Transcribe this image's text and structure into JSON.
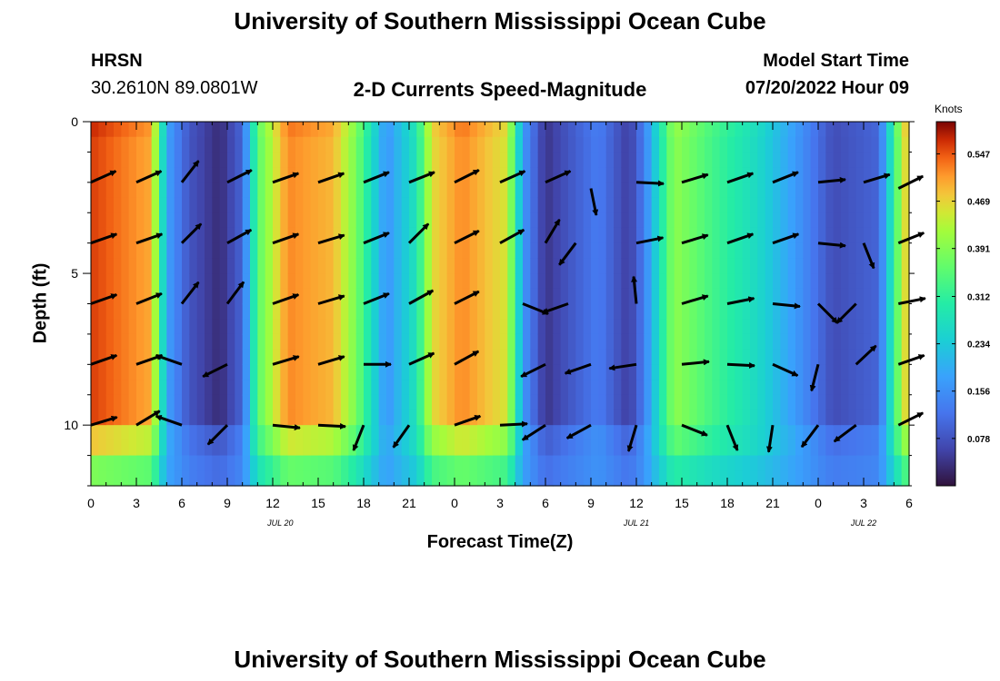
{
  "page": {
    "title_top": "University of Southern Mississippi Ocean Cube",
    "title_bottom": "University of Southern Mississippi Ocean Cube"
  },
  "station": {
    "name": "HRSN",
    "location": "30.2610N  89.0801W"
  },
  "model": {
    "label": "Model Start Time",
    "value": "07/20/2022 Hour 09"
  },
  "chart_data": {
    "type": "heatmap",
    "title": "2-D Currents Speed-Magnitude",
    "xlabel": "Forecast Time(Z)",
    "ylabel": "Depth (ft)",
    "x_range_hours": [
      0,
      54
    ],
    "y_range_ft": [
      0,
      12
    ],
    "x_ticks": [
      {
        "h": 0,
        "label": "0"
      },
      {
        "h": 3,
        "label": "3"
      },
      {
        "h": 6,
        "label": "6"
      },
      {
        "h": 9,
        "label": "9"
      },
      {
        "h": 12,
        "label": "12"
      },
      {
        "h": 15,
        "label": "15"
      },
      {
        "h": 18,
        "label": "18"
      },
      {
        "h": 21,
        "label": "21"
      },
      {
        "h": 24,
        "label": "0"
      },
      {
        "h": 27,
        "label": "3"
      },
      {
        "h": 30,
        "label": "6"
      },
      {
        "h": 33,
        "label": "9"
      },
      {
        "h": 36,
        "label": "12"
      },
      {
        "h": 39,
        "label": "15"
      },
      {
        "h": 42,
        "label": "18"
      },
      {
        "h": 45,
        "label": "21"
      },
      {
        "h": 48,
        "label": "0"
      },
      {
        "h": 51,
        "label": "3"
      },
      {
        "h": 54,
        "label": "6"
      }
    ],
    "y_ticks": [
      {
        "ft": 0,
        "label": "0"
      },
      {
        "ft": 5,
        "label": "5"
      },
      {
        "ft": 10,
        "label": "10"
      }
    ],
    "date_labels": [
      {
        "h": 12.5,
        "label": "JUL 20"
      },
      {
        "h": 36.0,
        "label": "JUL 21"
      },
      {
        "h": 51.0,
        "label": "JUL 22"
      }
    ],
    "colorbar": {
      "label": "Knots",
      "min": 0.0,
      "max": 0.6,
      "ticks": [
        "0.547",
        "0.469",
        "0.391",
        "0.312",
        "0.234",
        "0.156",
        "0.078"
      ]
    },
    "speed_profile_knots": [
      {
        "h": 0,
        "s": 0.56
      },
      {
        "h": 4.0,
        "s": 0.5
      },
      {
        "h": 5.0,
        "s": 0.18
      },
      {
        "h": 6.5,
        "s": 0.08
      },
      {
        "h": 8.5,
        "s": 0.03
      },
      {
        "h": 10.0,
        "s": 0.1
      },
      {
        "h": 11.0,
        "s": 0.35
      },
      {
        "h": 13.0,
        "s": 0.52
      },
      {
        "h": 16.0,
        "s": 0.49
      },
      {
        "h": 17.5,
        "s": 0.38
      },
      {
        "h": 19.5,
        "s": 0.16
      },
      {
        "h": 21.5,
        "s": 0.28
      },
      {
        "h": 22.5,
        "s": 0.46
      },
      {
        "h": 24.5,
        "s": 0.52
      },
      {
        "h": 27.5,
        "s": 0.45
      },
      {
        "h": 28.5,
        "s": 0.17
      },
      {
        "h": 30.0,
        "s": 0.04
      },
      {
        "h": 31.5,
        "s": 0.08
      },
      {
        "h": 33.5,
        "s": 0.13
      },
      {
        "h": 35.5,
        "s": 0.05
      },
      {
        "h": 36.5,
        "s": 0.13
      },
      {
        "h": 37.5,
        "s": 0.27
      },
      {
        "h": 38.5,
        "s": 0.4
      },
      {
        "h": 41.0,
        "s": 0.33
      },
      {
        "h": 44.0,
        "s": 0.26
      },
      {
        "h": 46.5,
        "s": 0.17
      },
      {
        "h": 49.0,
        "s": 0.07
      },
      {
        "h": 52.0,
        "s": 0.1
      },
      {
        "h": 53.5,
        "s": 0.42
      },
      {
        "h": 54,
        "s": 0.5
      }
    ],
    "vectors": [
      {
        "h": 0,
        "d": 2,
        "u": 1.0,
        "v": 0.45
      },
      {
        "h": 3,
        "d": 2,
        "u": 1.0,
        "v": 0.45
      },
      {
        "h": 6,
        "d": 2,
        "u": 0.7,
        "v": 0.9
      },
      {
        "h": 9,
        "d": 2,
        "u": 1.0,
        "v": 0.5
      },
      {
        "h": 12,
        "d": 2,
        "u": 1.0,
        "v": 0.35
      },
      {
        "h": 15,
        "d": 2,
        "u": 1.0,
        "v": 0.35
      },
      {
        "h": 18,
        "d": 2,
        "u": 1.0,
        "v": 0.4
      },
      {
        "h": 21,
        "d": 2,
        "u": 1.0,
        "v": 0.4
      },
      {
        "h": 24,
        "d": 2,
        "u": 1.0,
        "v": 0.5
      },
      {
        "h": 27,
        "d": 2,
        "u": 1.0,
        "v": 0.45
      },
      {
        "h": 30,
        "d": 2,
        "u": 1.0,
        "v": 0.45
      },
      {
        "h": 33,
        "d": 2.2,
        "u": 0.2,
        "v": -1.0
      },
      {
        "h": 36,
        "d": 2,
        "u": 1.0,
        "v": -0.05
      },
      {
        "h": 39,
        "d": 2,
        "u": 1.0,
        "v": 0.3
      },
      {
        "h": 42,
        "d": 2,
        "u": 1.0,
        "v": 0.35
      },
      {
        "h": 45,
        "d": 2,
        "u": 1.0,
        "v": 0.4
      },
      {
        "h": 48,
        "d": 2,
        "u": 1.0,
        "v": 0.1
      },
      {
        "h": 51,
        "d": 2,
        "u": 1.0,
        "v": 0.3
      },
      {
        "h": 53.3,
        "d": 2.2,
        "u": 1.0,
        "v": 0.5
      },
      {
        "h": 0,
        "d": 4,
        "u": 1.0,
        "v": 0.35
      },
      {
        "h": 3,
        "d": 4,
        "u": 1.0,
        "v": 0.35
      },
      {
        "h": 6,
        "d": 4,
        "u": 0.8,
        "v": 0.8
      },
      {
        "h": 9,
        "d": 4,
        "u": 1.0,
        "v": 0.55
      },
      {
        "h": 12,
        "d": 4,
        "u": 1.0,
        "v": 0.35
      },
      {
        "h": 15,
        "d": 4,
        "u": 1.0,
        "v": 0.3
      },
      {
        "h": 18,
        "d": 4,
        "u": 1.0,
        "v": 0.4
      },
      {
        "h": 21,
        "d": 4,
        "u": 0.8,
        "v": 0.8
      },
      {
        "h": 24,
        "d": 4,
        "u": 1.0,
        "v": 0.5
      },
      {
        "h": 27,
        "d": 4,
        "u": 1.0,
        "v": 0.55
      },
      {
        "h": 30,
        "d": 4,
        "u": 0.6,
        "v": 1.0
      },
      {
        "h": 32,
        "d": 4,
        "u": -0.6,
        "v": -0.8
      },
      {
        "h": 36,
        "d": 4,
        "u": 1.0,
        "v": 0.2
      },
      {
        "h": 39,
        "d": 4,
        "u": 1.0,
        "v": 0.3
      },
      {
        "h": 42,
        "d": 4,
        "u": 1.0,
        "v": 0.35
      },
      {
        "h": 45,
        "d": 4,
        "u": 1.0,
        "v": 0.35
      },
      {
        "h": 48,
        "d": 4,
        "u": 1.0,
        "v": -0.1
      },
      {
        "h": 51,
        "d": 4,
        "u": 0.4,
        "v": -1.0
      },
      {
        "h": 53.3,
        "d": 4,
        "u": 1.0,
        "v": 0.4
      },
      {
        "h": 0,
        "d": 6,
        "u": 1.0,
        "v": 0.35
      },
      {
        "h": 3,
        "d": 6,
        "u": 1.0,
        "v": 0.4
      },
      {
        "h": 6,
        "d": 6,
        "u": 0.7,
        "v": 0.9
      },
      {
        "h": 9,
        "d": 6,
        "u": 0.6,
        "v": 0.8
      },
      {
        "h": 12,
        "d": 6,
        "u": 1.0,
        "v": 0.35
      },
      {
        "h": 15,
        "d": 6,
        "u": 1.0,
        "v": 0.3
      },
      {
        "h": 18,
        "d": 6,
        "u": 1.0,
        "v": 0.4
      },
      {
        "h": 21,
        "d": 6,
        "u": 1.0,
        "v": 0.55
      },
      {
        "h": 24,
        "d": 6,
        "u": 1.0,
        "v": 0.5
      },
      {
        "h": 28.5,
        "d": 6,
        "u": 1.0,
        "v": -0.4
      },
      {
        "h": 31.5,
        "d": 6,
        "u": -1.0,
        "v": -0.35
      },
      {
        "h": 36,
        "d": 6,
        "u": -0.1,
        "v": 1.0
      },
      {
        "h": 39,
        "d": 6,
        "u": 1.0,
        "v": 0.3
      },
      {
        "h": 42,
        "d": 6,
        "u": 1.0,
        "v": 0.2
      },
      {
        "h": 45,
        "d": 6,
        "u": 1.0,
        "v": -0.1
      },
      {
        "h": 48,
        "d": 6,
        "u": 0.8,
        "v": -0.8
      },
      {
        "h": 50.5,
        "d": 6,
        "u": -0.7,
        "v": -0.7
      },
      {
        "h": 53.3,
        "d": 6,
        "u": 1.0,
        "v": 0.2
      },
      {
        "h": 0,
        "d": 8,
        "u": 1.0,
        "v": 0.35
      },
      {
        "h": 3,
        "d": 8,
        "u": 1.0,
        "v": 0.35
      },
      {
        "h": 6,
        "d": 8,
        "u": -1.0,
        "v": 0.35
      },
      {
        "h": 9,
        "d": 8,
        "u": -1.0,
        "v": -0.5
      },
      {
        "h": 12,
        "d": 8,
        "u": 1.0,
        "v": 0.3
      },
      {
        "h": 15,
        "d": 8,
        "u": 1.0,
        "v": 0.3
      },
      {
        "h": 18,
        "d": 8,
        "u": 1.0,
        "v": 0.0
      },
      {
        "h": 21,
        "d": 8,
        "u": 1.0,
        "v": 0.45
      },
      {
        "h": 24,
        "d": 8,
        "u": 1.0,
        "v": 0.55
      },
      {
        "h": 30,
        "d": 8,
        "u": -1.0,
        "v": -0.5
      },
      {
        "h": 33,
        "d": 8,
        "u": -1.0,
        "v": -0.35
      },
      {
        "h": 36,
        "d": 8,
        "u": -1.0,
        "v": -0.15
      },
      {
        "h": 39,
        "d": 8,
        "u": 1.0,
        "v": 0.1
      },
      {
        "h": 42,
        "d": 8,
        "u": 1.0,
        "v": -0.05
      },
      {
        "h": 45,
        "d": 8,
        "u": 1.0,
        "v": -0.45
      },
      {
        "h": 48,
        "d": 8,
        "u": -0.25,
        "v": -1.0
      },
      {
        "h": 50.5,
        "d": 8,
        "u": 0.8,
        "v": 0.75
      },
      {
        "h": 53.3,
        "d": 8,
        "u": 1.0,
        "v": 0.35
      },
      {
        "h": 0,
        "d": 10,
        "u": 1.0,
        "v": 0.3
      },
      {
        "h": 3,
        "d": 10,
        "u": 1.0,
        "v": 0.6
      },
      {
        "h": 6,
        "d": 10,
        "u": -1.0,
        "v": 0.35
      },
      {
        "h": 9,
        "d": 10,
        "u": -0.7,
        "v": -0.7
      },
      {
        "h": 12,
        "d": 10,
        "u": 1.0,
        "v": -0.1
      },
      {
        "h": 15,
        "d": 10,
        "u": 1.0,
        "v": -0.05
      },
      {
        "h": 18,
        "d": 10,
        "u": -0.4,
        "v": -1.0
      },
      {
        "h": 21,
        "d": 10,
        "u": -0.6,
        "v": -0.85
      },
      {
        "h": 24,
        "d": 10,
        "u": 1.0,
        "v": 0.35
      },
      {
        "h": 27,
        "d": 10,
        "u": 1.0,
        "v": 0.05
      },
      {
        "h": 30,
        "d": 10,
        "u": -1.0,
        "v": -0.65
      },
      {
        "h": 33,
        "d": 10,
        "u": -1.0,
        "v": -0.55
      },
      {
        "h": 36,
        "d": 10,
        "u": -0.3,
        "v": -1.0
      },
      {
        "h": 39,
        "d": 10,
        "u": 1.0,
        "v": -0.4
      },
      {
        "h": 42,
        "d": 10,
        "u": 0.4,
        "v": -1.0
      },
      {
        "h": 45,
        "d": 10,
        "u": -0.15,
        "v": -1.0
      },
      {
        "h": 48,
        "d": 10,
        "u": -0.6,
        "v": -0.8
      },
      {
        "h": 50.5,
        "d": 10,
        "u": -0.8,
        "v": -0.6
      },
      {
        "h": 53.3,
        "d": 10,
        "u": 1.0,
        "v": 0.5
      }
    ]
  }
}
